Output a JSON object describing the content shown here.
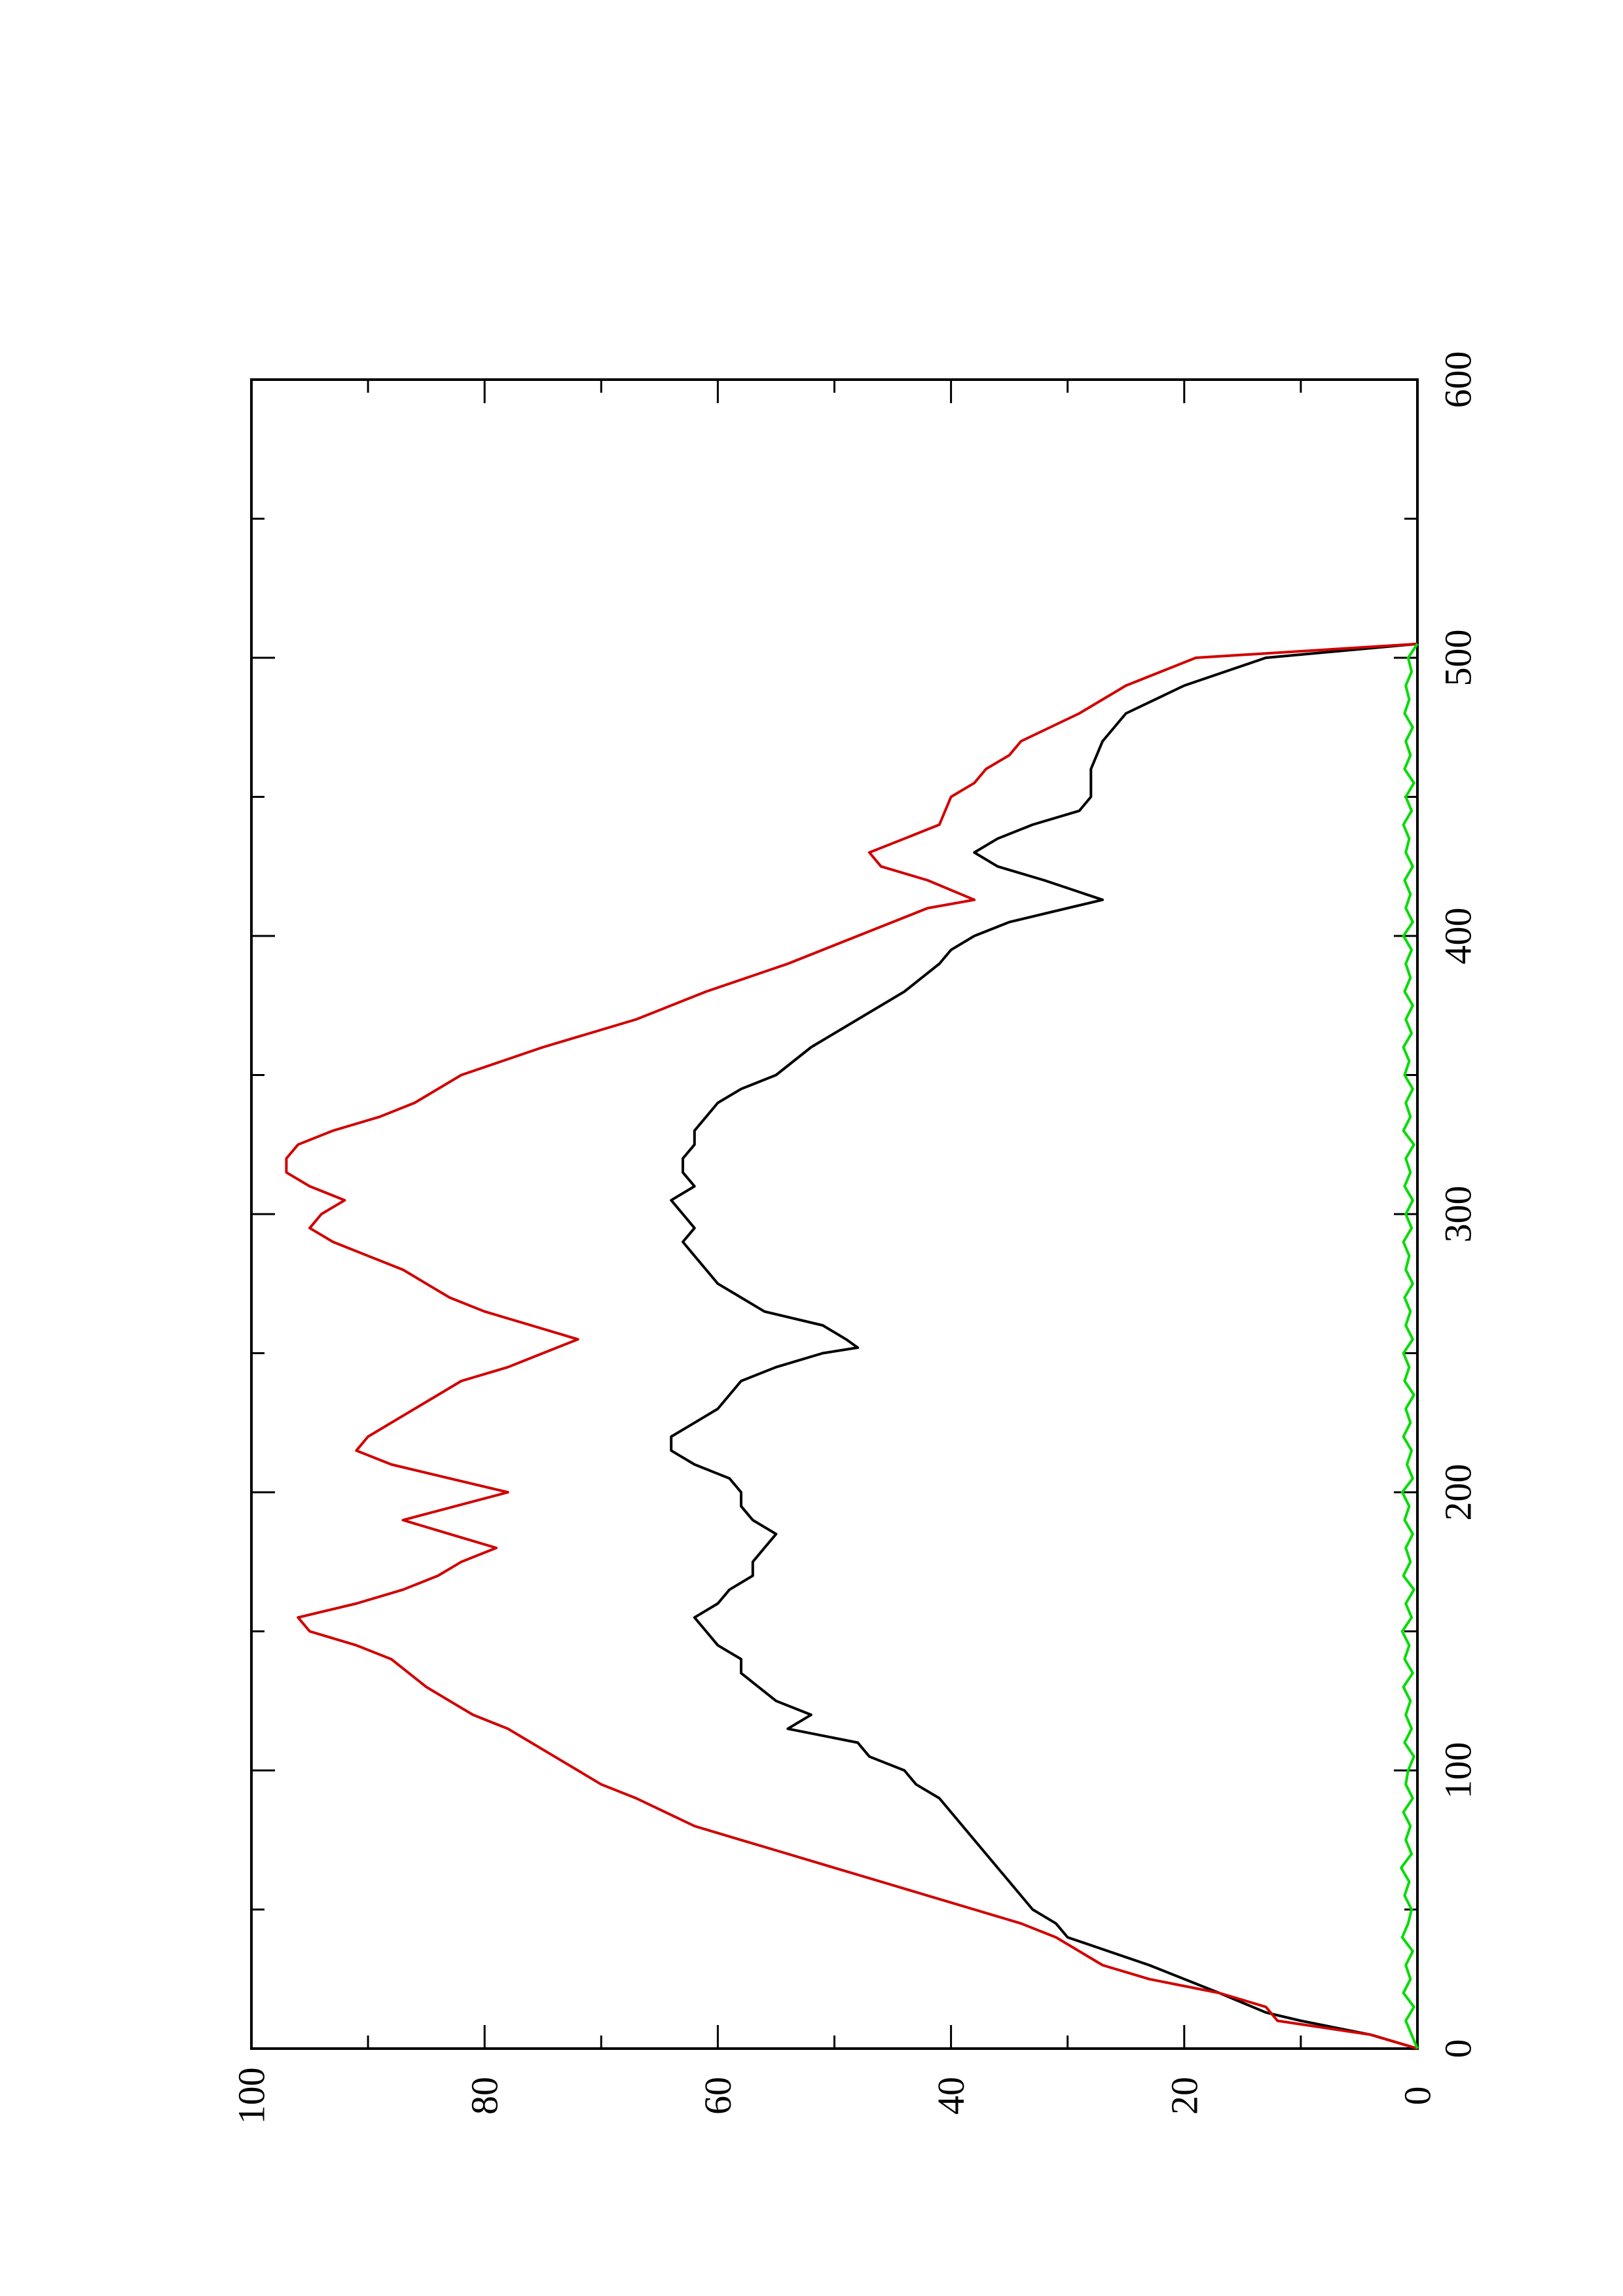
{
  "chart_data": {
    "type": "line",
    "orientation": "rotated-90-ccw",
    "title": "",
    "xlabel": "",
    "ylabel": "",
    "xlim": [
      0,
      600
    ],
    "ylim": [
      0,
      100
    ],
    "x_ticks": [
      "0",
      "100",
      "200",
      "300",
      "400",
      "500",
      "600"
    ],
    "y_ticks": [
      "0",
      "20",
      "40",
      "60",
      "80",
      "100"
    ],
    "grid": false,
    "legend": "none",
    "series": [
      {
        "color": "#000000",
        "points": [
          [
            0,
            0
          ],
          [
            5,
            4
          ],
          [
            10,
            10
          ],
          [
            13,
            13
          ],
          [
            20,
            17
          ],
          [
            30,
            23
          ],
          [
            40,
            30
          ],
          [
            45,
            31
          ],
          [
            50,
            33
          ],
          [
            60,
            35
          ],
          [
            70,
            37
          ],
          [
            80,
            39
          ],
          [
            90,
            41
          ],
          [
            95,
            43
          ],
          [
            100,
            44
          ],
          [
            105,
            47
          ],
          [
            110,
            48
          ],
          [
            115,
            54
          ],
          [
            120,
            52
          ],
          [
            125,
            55
          ],
          [
            135,
            58
          ],
          [
            140,
            58
          ],
          [
            145,
            60
          ],
          [
            150,
            61
          ],
          [
            155,
            62
          ],
          [
            160,
            60
          ],
          [
            165,
            59
          ],
          [
            170,
            57
          ],
          [
            175,
            57
          ],
          [
            180,
            56
          ],
          [
            185,
            55
          ],
          [
            190,
            57
          ],
          [
            195,
            58
          ],
          [
            200,
            58
          ],
          [
            205,
            59
          ],
          [
            210,
            62
          ],
          [
            215,
            64
          ],
          [
            220,
            64
          ],
          [
            225,
            62
          ],
          [
            230,
            60
          ],
          [
            240,
            58
          ],
          [
            245,
            55
          ],
          [
            250,
            51
          ],
          [
            252,
            48
          ],
          [
            255,
            49
          ],
          [
            260,
            51
          ],
          [
            265,
            56
          ],
          [
            270,
            58
          ],
          [
            275,
            60
          ],
          [
            280,
            61
          ],
          [
            285,
            62
          ],
          [
            290,
            63
          ],
          [
            295,
            62
          ],
          [
            300,
            63
          ],
          [
            305,
            64
          ],
          [
            310,
            62
          ],
          [
            315,
            63
          ],
          [
            320,
            63
          ],
          [
            325,
            62
          ],
          [
            330,
            62
          ],
          [
            335,
            61
          ],
          [
            340,
            60
          ],
          [
            345,
            58
          ],
          [
            350,
            55
          ],
          [
            360,
            52
          ],
          [
            370,
            48
          ],
          [
            380,
            44
          ],
          [
            390,
            41
          ],
          [
            395,
            40
          ],
          [
            400,
            38
          ],
          [
            405,
            35
          ],
          [
            410,
            30
          ],
          [
            413,
            27
          ],
          [
            420,
            32
          ],
          [
            425,
            36
          ],
          [
            430,
            38
          ],
          [
            435,
            36
          ],
          [
            440,
            33
          ],
          [
            445,
            29
          ],
          [
            450,
            28
          ],
          [
            460,
            28
          ],
          [
            470,
            27
          ],
          [
            480,
            25
          ],
          [
            490,
            20
          ],
          [
            500,
            13
          ],
          [
            505,
            0
          ]
        ]
      },
      {
        "color": "#d10000",
        "points": [
          [
            0,
            0
          ],
          [
            5,
            4
          ],
          [
            10,
            12
          ],
          [
            15,
            13
          ],
          [
            20,
            17
          ],
          [
            25,
            23
          ],
          [
            30,
            27
          ],
          [
            40,
            31
          ],
          [
            45,
            34
          ],
          [
            50,
            38
          ],
          [
            55,
            42
          ],
          [
            60,
            46
          ],
          [
            65,
            50
          ],
          [
            70,
            54
          ],
          [
            75,
            58
          ],
          [
            80,
            62
          ],
          [
            90,
            67
          ],
          [
            95,
            70
          ],
          [
            100,
            72
          ],
          [
            105,
            74
          ],
          [
            110,
            76
          ],
          [
            115,
            78
          ],
          [
            120,
            81
          ],
          [
            125,
            83
          ],
          [
            130,
            85
          ],
          [
            140,
            88
          ],
          [
            145,
            91
          ],
          [
            150,
            95
          ],
          [
            155,
            96
          ],
          [
            160,
            91
          ],
          [
            165,
            87
          ],
          [
            170,
            84
          ],
          [
            175,
            82
          ],
          [
            180,
            79
          ],
          [
            185,
            83
          ],
          [
            190,
            87
          ],
          [
            200,
            78
          ],
          [
            205,
            83
          ],
          [
            210,
            88
          ],
          [
            215,
            91
          ],
          [
            220,
            90
          ],
          [
            230,
            86
          ],
          [
            240,
            82
          ],
          [
            245,
            78
          ],
          [
            250,
            75
          ],
          [
            255,
            72
          ],
          [
            260,
            76
          ],
          [
            265,
            80
          ],
          [
            270,
            83
          ],
          [
            275,
            85
          ],
          [
            280,
            87
          ],
          [
            285,
            90
          ],
          [
            290,
            93
          ],
          [
            295,
            95
          ],
          [
            300,
            94
          ],
          [
            305,
            92
          ],
          [
            310,
            95
          ],
          [
            315,
            97
          ],
          [
            320,
            97
          ],
          [
            325,
            96
          ],
          [
            330,
            93
          ],
          [
            335,
            89
          ],
          [
            340,
            86
          ],
          [
            350,
            82
          ],
          [
            360,
            75
          ],
          [
            370,
            67
          ],
          [
            380,
            61
          ],
          [
            390,
            54
          ],
          [
            400,
            48
          ],
          [
            410,
            42
          ],
          [
            413,
            38
          ],
          [
            420,
            42
          ],
          [
            425,
            46
          ],
          [
            430,
            47
          ],
          [
            435,
            44
          ],
          [
            440,
            41
          ],
          [
            450,
            40
          ],
          [
            455,
            38
          ],
          [
            460,
            37
          ],
          [
            465,
            35
          ],
          [
            470,
            34
          ],
          [
            480,
            29
          ],
          [
            490,
            25
          ],
          [
            500,
            19
          ],
          [
            505,
            0
          ]
        ]
      },
      {
        "color": "#00dd00",
        "points": [
          [
            0,
            0
          ],
          [
            5,
            0.5
          ],
          [
            10,
            1
          ],
          [
            15,
            0.3
          ],
          [
            20,
            1.2
          ],
          [
            25,
            0.6
          ],
          [
            30,
            1
          ],
          [
            35,
            0.4
          ],
          [
            40,
            1.3
          ],
          [
            45,
            0.8
          ],
          [
            50,
            0.5
          ],
          [
            55,
            1.1
          ],
          [
            60,
            0.7
          ],
          [
            65,
            1.4
          ],
          [
            70,
            0.5
          ],
          [
            75,
            1
          ],
          [
            80,
            0.6
          ],
          [
            85,
            1.2
          ],
          [
            90,
            0.4
          ],
          [
            95,
            1
          ],
          [
            100,
            0.8
          ],
          [
            105,
            0.3
          ],
          [
            110,
            1.1
          ],
          [
            115,
            0.5
          ],
          [
            120,
            1
          ],
          [
            125,
            0.6
          ],
          [
            130,
            1.2
          ],
          [
            135,
            0.4
          ],
          [
            140,
            1.1
          ],
          [
            145,
            0.7
          ],
          [
            150,
            1.3
          ],
          [
            155,
            0.5
          ],
          [
            160,
            1
          ],
          [
            165,
            0.3
          ],
          [
            170,
            1.2
          ],
          [
            175,
            0.6
          ],
          [
            180,
            1
          ],
          [
            185,
            0.4
          ],
          [
            190,
            1.1
          ],
          [
            195,
            0.7
          ],
          [
            200,
            1.3
          ],
          [
            205,
            0.4
          ],
          [
            210,
            0.9
          ],
          [
            215,
            0.5
          ],
          [
            220,
            1.2
          ],
          [
            225,
            0.6
          ],
          [
            230,
            1
          ],
          [
            235,
            0.3
          ],
          [
            240,
            1.1
          ],
          [
            245,
            0.7
          ],
          [
            250,
            1.2
          ],
          [
            255,
            0.4
          ],
          [
            260,
            1
          ],
          [
            265,
            0.6
          ],
          [
            270,
            1.1
          ],
          [
            275,
            0.4
          ],
          [
            280,
            1
          ],
          [
            285,
            0.7
          ],
          [
            290,
            1.2
          ],
          [
            295,
            0.5
          ],
          [
            300,
            1
          ],
          [
            305,
            0.4
          ],
          [
            310,
            1.1
          ],
          [
            315,
            0.6
          ],
          [
            320,
            1
          ],
          [
            325,
            0.3
          ],
          [
            330,
            1.2
          ],
          [
            335,
            0.6
          ],
          [
            340,
            1
          ],
          [
            345,
            0.4
          ],
          [
            350,
            1.1
          ],
          [
            355,
            0.7
          ],
          [
            360,
            1.2
          ],
          [
            365,
            0.5
          ],
          [
            370,
            1
          ],
          [
            375,
            0.4
          ],
          [
            380,
            1.1
          ],
          [
            385,
            0.6
          ],
          [
            390,
            1
          ],
          [
            395,
            0.5
          ],
          [
            400,
            1.2
          ],
          [
            405,
            0.4
          ],
          [
            410,
            1
          ],
          [
            415,
            0.6
          ],
          [
            420,
            1.1
          ],
          [
            425,
            0.4
          ],
          [
            430,
            1
          ],
          [
            435,
            0.7
          ],
          [
            440,
            1.2
          ],
          [
            445,
            0.5
          ],
          [
            450,
            1
          ],
          [
            455,
            0.3
          ],
          [
            460,
            1.1
          ],
          [
            465,
            0.6
          ],
          [
            470,
            1
          ],
          [
            475,
            0.4
          ],
          [
            480,
            1.1
          ],
          [
            485,
            0.7
          ],
          [
            490,
            1
          ],
          [
            495,
            0.5
          ],
          [
            500,
            0.8
          ],
          [
            505,
            0
          ]
        ]
      }
    ]
  }
}
